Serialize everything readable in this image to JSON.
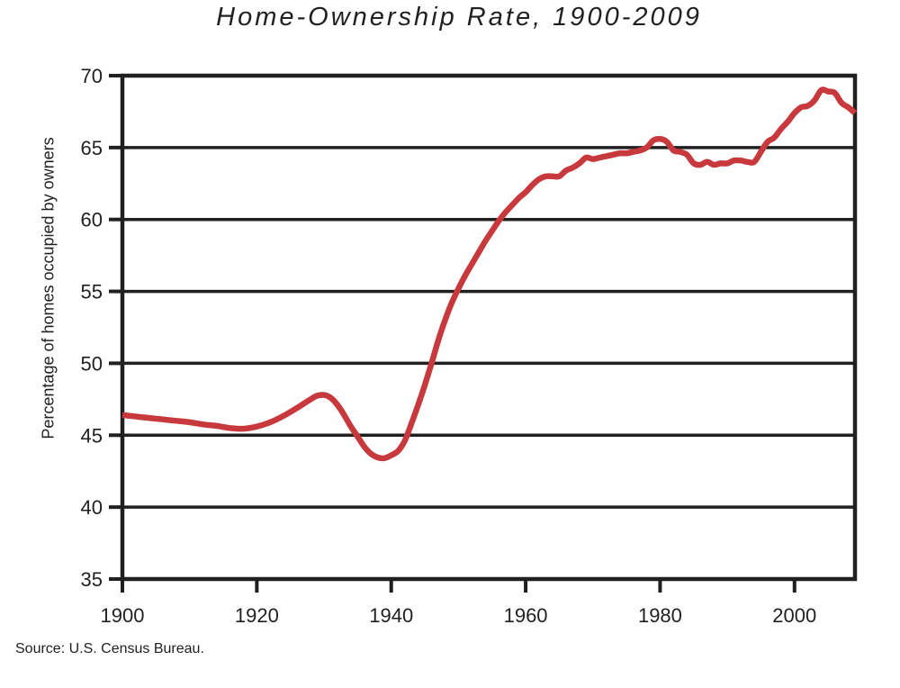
{
  "chart_data": {
    "type": "line",
    "title": "Home-Ownership Rate, 1900-2009",
    "ylabel": "Percentage of homes occupied by owners",
    "xlabel": "",
    "source": "Source: U.S. Census Bureau.",
    "xlim": [
      1900,
      2009
    ],
    "ylim": [
      35,
      70
    ],
    "x_ticks": [
      1900,
      1920,
      1940,
      1960,
      1980,
      2000
    ],
    "y_ticks": [
      35,
      40,
      45,
      50,
      55,
      60,
      65,
      70
    ],
    "grid": "horizontal-on",
    "legend": "none",
    "line_color": "#c7393c",
    "axis_color": "#221f20",
    "series": [
      {
        "name": "Home-ownership rate (% of homes occupied by owners)",
        "points": [
          [
            1900,
            46.4
          ],
          [
            1902,
            46.3
          ],
          [
            1904,
            46.2
          ],
          [
            1906,
            46.1
          ],
          [
            1908,
            46.0
          ],
          [
            1910,
            45.9
          ],
          [
            1912,
            45.75
          ],
          [
            1914,
            45.65
          ],
          [
            1916,
            45.5
          ],
          [
            1918,
            45.45
          ],
          [
            1920,
            45.6
          ],
          [
            1922,
            45.9
          ],
          [
            1924,
            46.35
          ],
          [
            1926,
            46.9
          ],
          [
            1928,
            47.5
          ],
          [
            1929,
            47.75
          ],
          [
            1930,
            47.8
          ],
          [
            1931,
            47.6
          ],
          [
            1932,
            47.1
          ],
          [
            1933,
            46.4
          ],
          [
            1934,
            45.6
          ],
          [
            1935,
            44.9
          ],
          [
            1936,
            44.2
          ],
          [
            1937,
            43.7
          ],
          [
            1938,
            43.45
          ],
          [
            1939,
            43.4
          ],
          [
            1940,
            43.6
          ],
          [
            1941,
            43.9
          ],
          [
            1942,
            44.6
          ],
          [
            1943,
            45.8
          ],
          [
            1944,
            47.1
          ],
          [
            1945,
            48.5
          ],
          [
            1946,
            50.0
          ],
          [
            1947,
            51.6
          ],
          [
            1948,
            53.0
          ],
          [
            1949,
            54.2
          ],
          [
            1950,
            55.2
          ],
          [
            1951,
            56.1
          ],
          [
            1952,
            56.9
          ],
          [
            1953,
            57.7
          ],
          [
            1954,
            58.5
          ],
          [
            1955,
            59.2
          ],
          [
            1956,
            59.9
          ],
          [
            1957,
            60.5
          ],
          [
            1958,
            61.0
          ],
          [
            1959,
            61.5
          ],
          [
            1960,
            61.9
          ],
          [
            1961,
            62.4
          ],
          [
            1962,
            62.8
          ],
          [
            1963,
            63.0
          ],
          [
            1964,
            63.0
          ],
          [
            1965,
            63.0
          ],
          [
            1966,
            63.4
          ],
          [
            1967,
            63.6
          ],
          [
            1968,
            63.9
          ],
          [
            1969,
            64.3
          ],
          [
            1970,
            64.2
          ],
          [
            1971,
            64.3
          ],
          [
            1972,
            64.4
          ],
          [
            1973,
            64.5
          ],
          [
            1974,
            64.6
          ],
          [
            1975,
            64.6
          ],
          [
            1976,
            64.7
          ],
          [
            1977,
            64.8
          ],
          [
            1978,
            65.0
          ],
          [
            1979,
            65.5
          ],
          [
            1980,
            65.6
          ],
          [
            1981,
            65.4
          ],
          [
            1982,
            64.8
          ],
          [
            1983,
            64.7
          ],
          [
            1984,
            64.5
          ],
          [
            1985,
            63.9
          ],
          [
            1986,
            63.8
          ],
          [
            1987,
            64.0
          ],
          [
            1988,
            63.8
          ],
          [
            1989,
            63.9
          ],
          [
            1990,
            63.9
          ],
          [
            1991,
            64.1
          ],
          [
            1992,
            64.1
          ],
          [
            1993,
            64.0
          ],
          [
            1994,
            64.0
          ],
          [
            1995,
            64.7
          ],
          [
            1996,
            65.4
          ],
          [
            1997,
            65.7
          ],
          [
            1998,
            66.3
          ],
          [
            1999,
            66.8
          ],
          [
            2000,
            67.4
          ],
          [
            2001,
            67.8
          ],
          [
            2002,
            67.9
          ],
          [
            2003,
            68.3
          ],
          [
            2004,
            69.0
          ],
          [
            2005,
            68.9
          ],
          [
            2006,
            68.8
          ],
          [
            2007,
            68.1
          ],
          [
            2008,
            67.8
          ],
          [
            2009,
            67.4
          ]
        ]
      }
    ]
  }
}
